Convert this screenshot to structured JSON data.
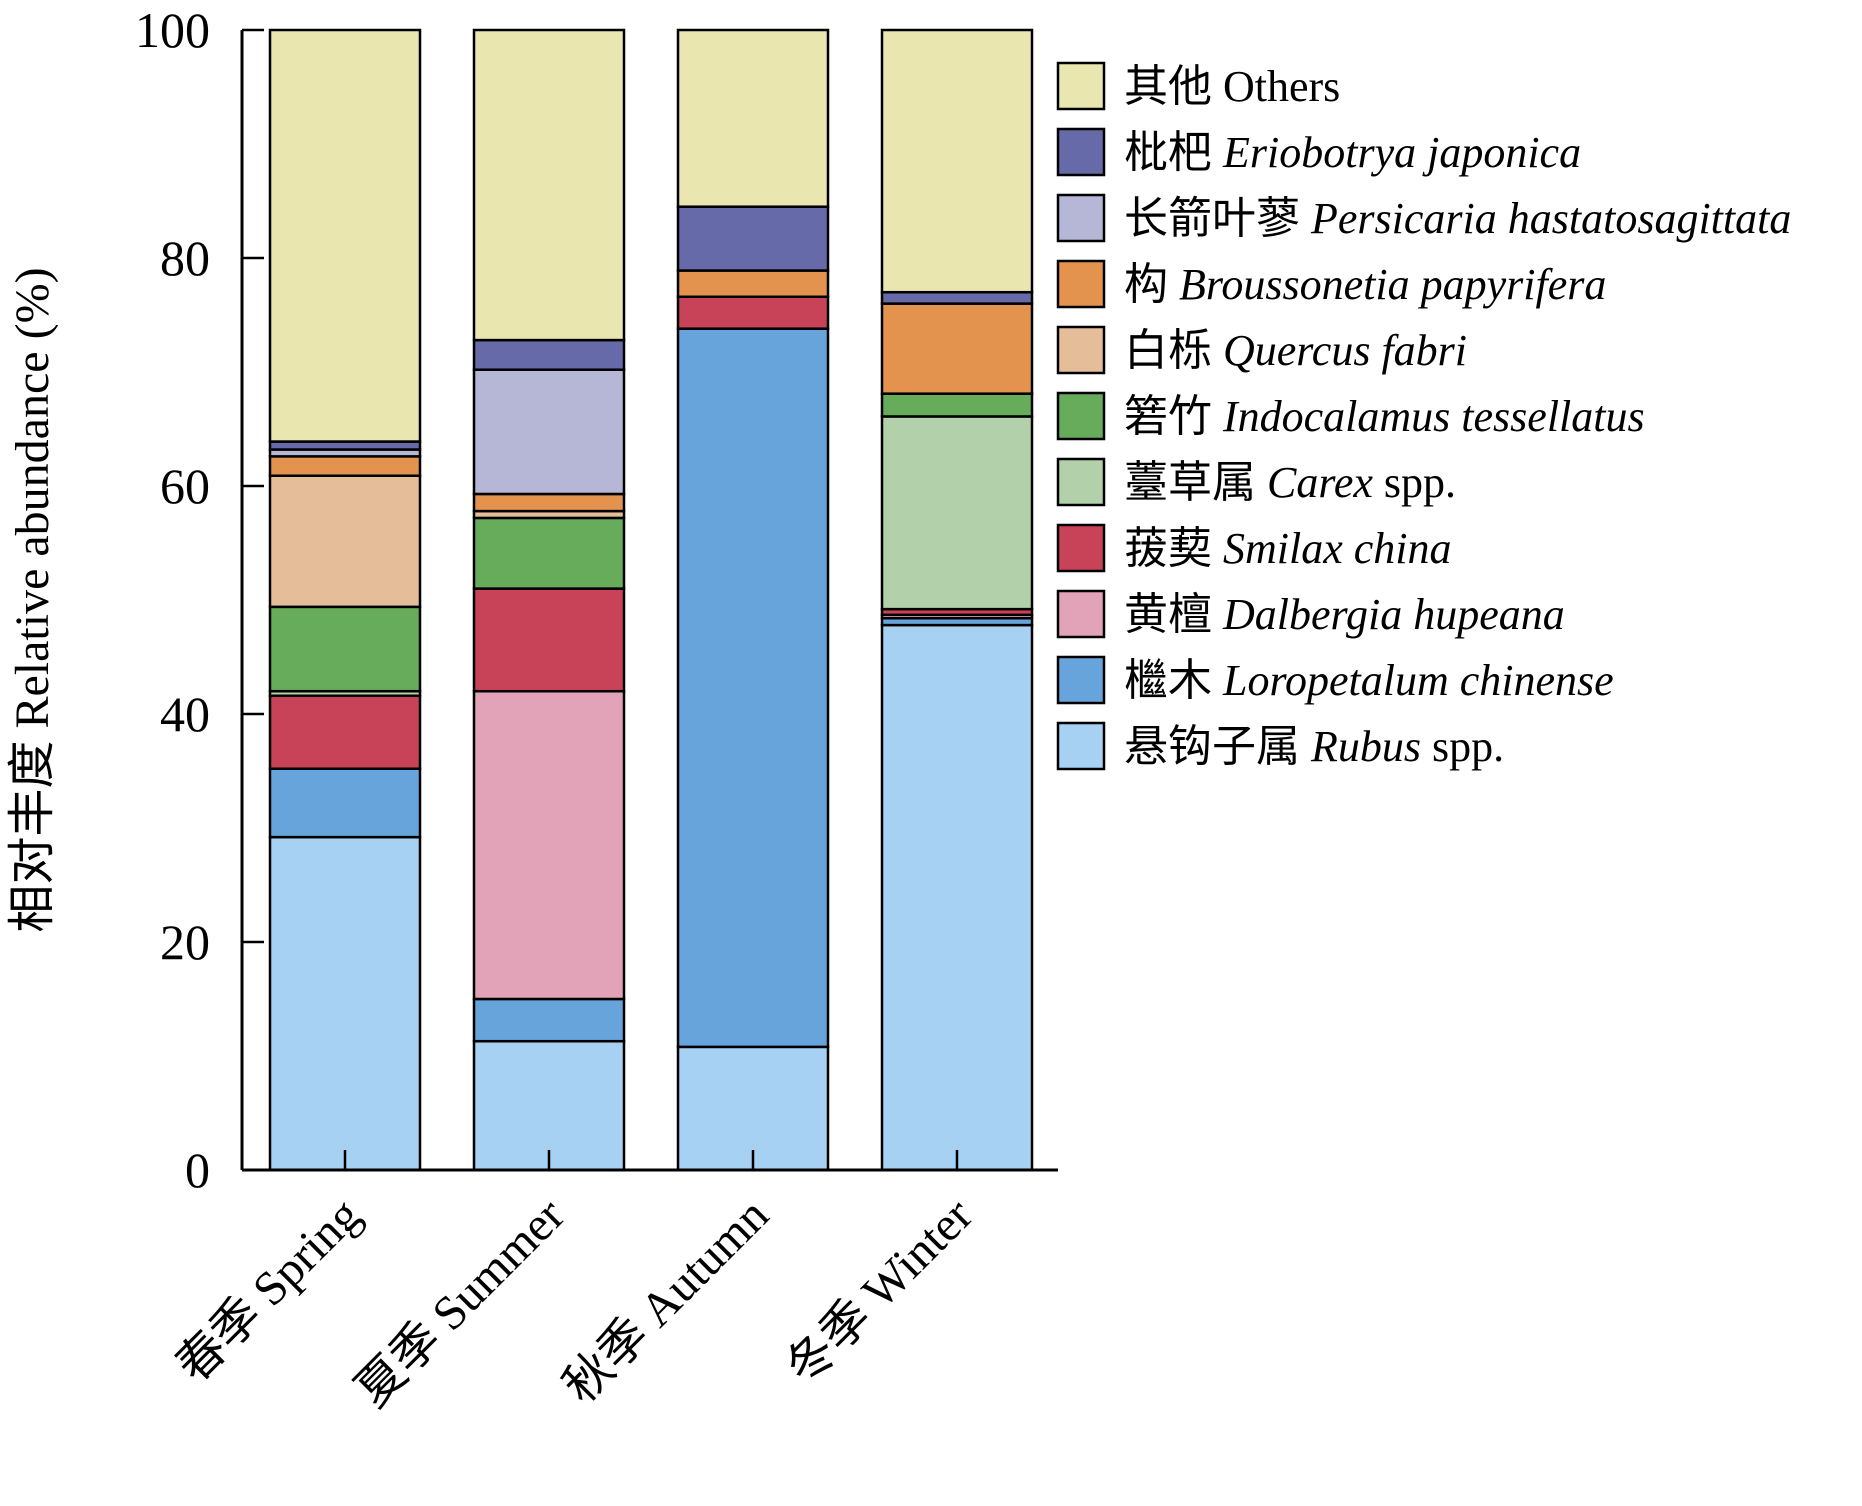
{
  "chart_data": {
    "type": "bar",
    "stacked": true,
    "title": "",
    "ylabel": "相对丰度 Relative abundance (%)",
    "xlabel": "",
    "ylim": [
      0,
      100
    ],
    "yticks": [
      "0",
      "20",
      "40",
      "60",
      "80",
      "100"
    ],
    "categories": [
      "春季 Spring",
      "夏季 Summer",
      "秋季 Autumn",
      "冬季 Winter"
    ],
    "legend_position": "right",
    "series": [
      {
        "name_cn": "悬钩子属",
        "name_sci": "Rubus",
        "suffix": " spp.",
        "color": "#a6d1f2",
        "values": [
          29.2,
          11.3,
          10.8,
          47.8
        ]
      },
      {
        "name_cn": "檵木",
        "name_sci": "Loropetalum chinense",
        "suffix": "",
        "color": "#67a4dc",
        "values": [
          6.0,
          3.7,
          63.0,
          0.6
        ]
      },
      {
        "name_cn": "黄檀",
        "name_sci": "Dalbergia hupeana",
        "suffix": "",
        "color": "#e2a2b8",
        "values": [
          0.0,
          27.0,
          0.0,
          0.3
        ]
      },
      {
        "name_cn": "菝葜",
        "name_sci": "Smilax china",
        "suffix": "",
        "color": "#c84358",
        "values": [
          6.4,
          9.0,
          2.8,
          0.5
        ]
      },
      {
        "name_cn": "薹草属",
        "name_sci": "Carex",
        "suffix": " spp.",
        "color": "#b2d1ab",
        "values": [
          0.4,
          0.0,
          0.0,
          16.9
        ]
      },
      {
        "name_cn": "箬竹",
        "name_sci": "Indocalamus tessellatus",
        "suffix": "",
        "color": "#66ac5a",
        "values": [
          7.4,
          6.2,
          0.0,
          2.0
        ]
      },
      {
        "name_cn": "白栎",
        "name_sci": "Quercus fabri",
        "suffix": "",
        "color": "#e5bd98",
        "values": [
          11.5,
          0.6,
          0.0,
          0.0
        ]
      },
      {
        "name_cn": "构",
        "name_sci": "Broussonetia papyrifera",
        "suffix": "",
        "color": "#e3934e",
        "values": [
          1.7,
          1.5,
          2.3,
          7.9
        ]
      },
      {
        "name_cn": "长箭叶蓼",
        "name_sci": "Persicaria hastatosagittata",
        "suffix": "",
        "color": "#b6b6d6",
        "values": [
          0.6,
          10.9,
          0.0,
          0.0
        ]
      },
      {
        "name_cn": "枇杷",
        "name_sci": "Eriobotrya japonica",
        "suffix": "",
        "color": "#666aa9",
        "values": [
          0.7,
          2.6,
          5.6,
          1.0
        ]
      },
      {
        "name_cn": "其他",
        "name_sci": "Others",
        "suffix": "",
        "color": "#e9e6b0",
        "values": [
          36.1,
          27.2,
          15.5,
          23.0
        ]
      }
    ]
  }
}
